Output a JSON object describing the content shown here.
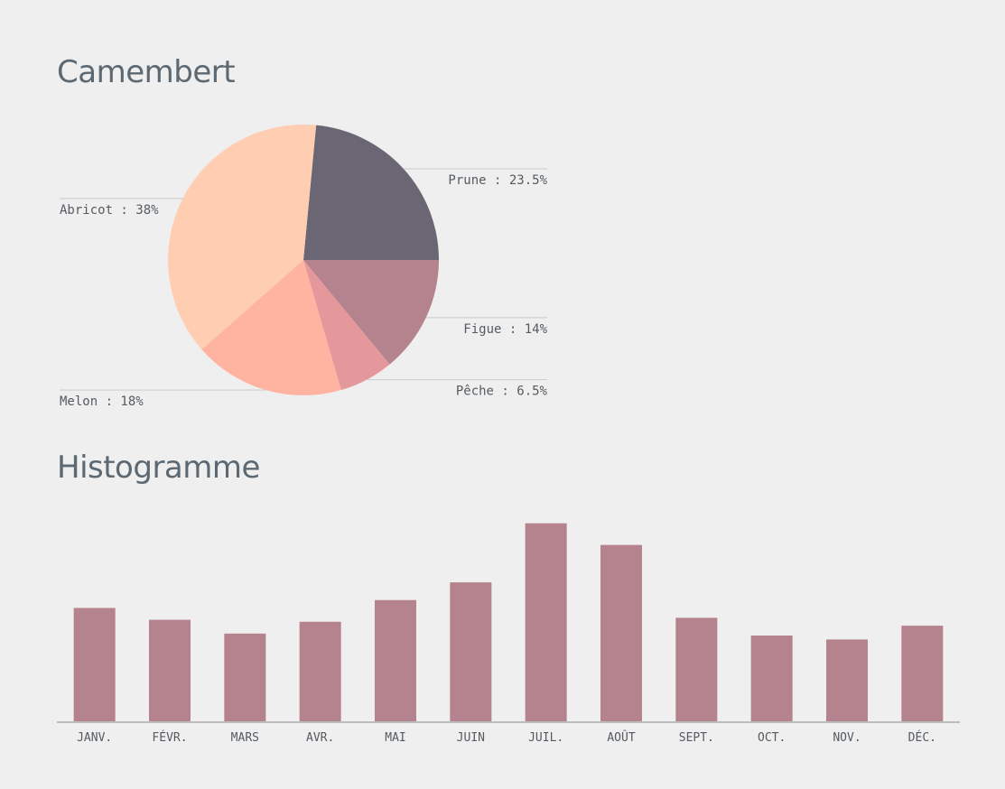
{
  "pie_section": {
    "title": "Camembert"
  },
  "bar_section": {
    "title": "Histogramme"
  },
  "chart_data": [
    {
      "type": "pie",
      "title": "Camembert",
      "slices": [
        {
          "label": "Prune",
          "value": 23.5,
          "display": "Prune : 23.5%",
          "color": "#6b6673"
        },
        {
          "label": "Abricot",
          "value": 38,
          "display": "Abricot : 38%",
          "color": "#ffcdb2"
        },
        {
          "label": "Melon",
          "value": 18,
          "display": "Melon : 18%",
          "color": "#ffb4a2"
        },
        {
          "label": "Pêche",
          "value": 6.5,
          "display": "Pêche : 6.5%",
          "color": "#e5989b"
        },
        {
          "label": "Figue",
          "value": 14,
          "display": "Figue : 14%",
          "color": "#b5838d"
        }
      ],
      "start_angle_deg": 0,
      "direction": "counterclockwise-from-east",
      "leader_color": "#cfcfcf"
    },
    {
      "type": "bar",
      "title": "Histogramme",
      "categories": [
        "JANV.",
        "FÉVR.",
        "MARS",
        "AVR.",
        "MAI",
        "JUIN",
        "JUIL.",
        "AOÛT",
        "SEPT.",
        "OCT.",
        "NOV.",
        "DÉC."
      ],
      "values": [
        58,
        52,
        45,
        51,
        62,
        71,
        101,
        90,
        53,
        44,
        42,
        49
      ],
      "ylim": [
        0,
        110
      ],
      "color": "#b5838d",
      "axis_color": "#bdbdbd",
      "grid": false,
      "xlabel": "",
      "ylabel": ""
    }
  ]
}
